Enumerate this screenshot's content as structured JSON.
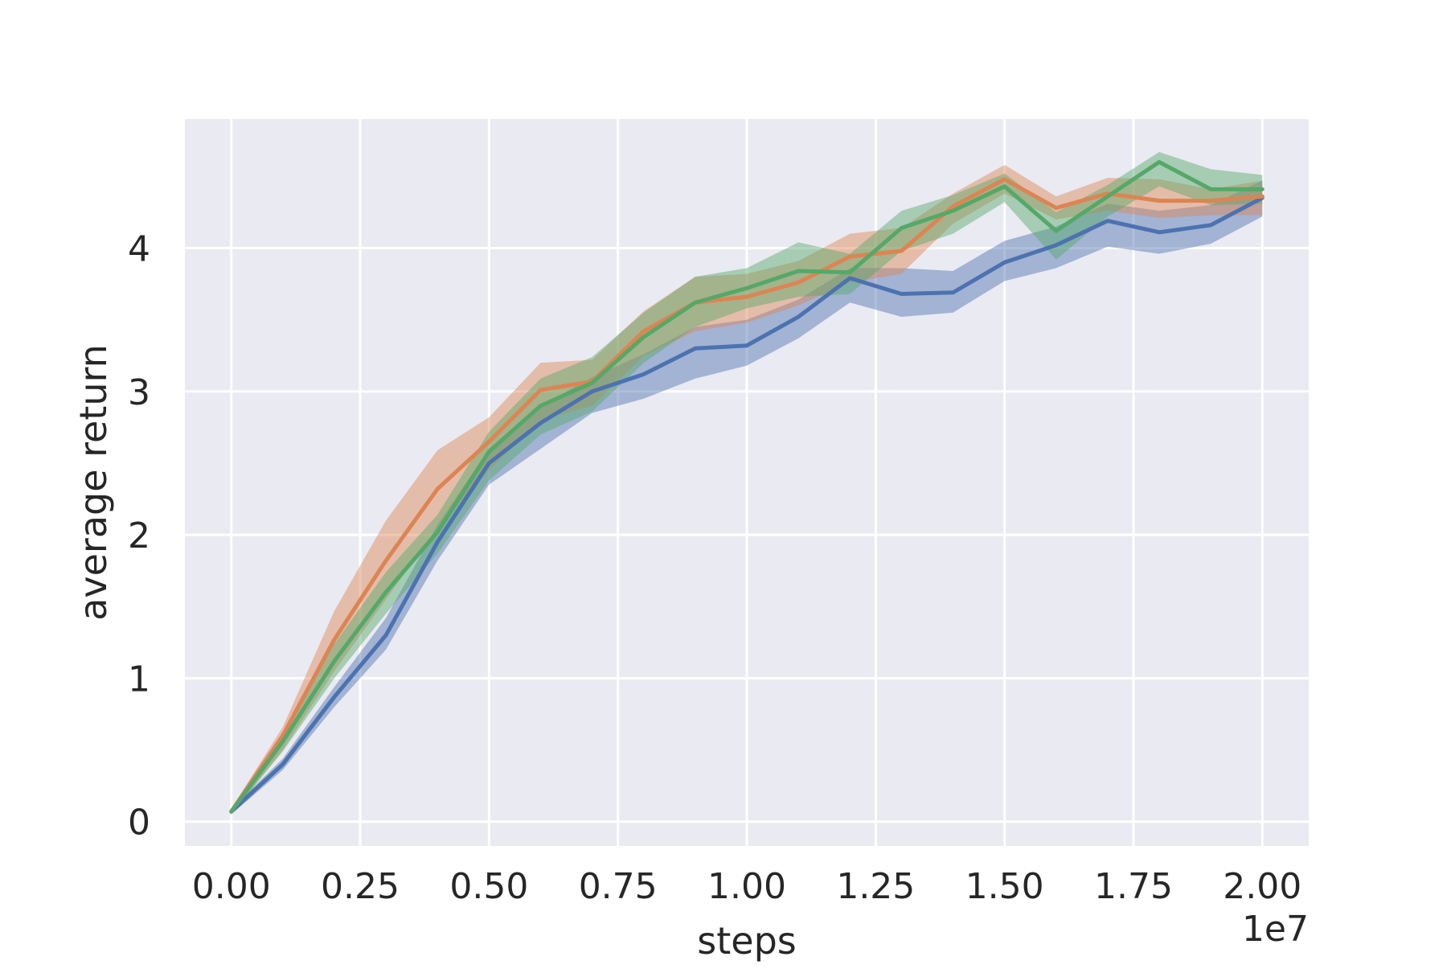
{
  "chart_data": {
    "type": "line",
    "title": "",
    "xlabel": "steps",
    "ylabel": "average return",
    "x_offset_label": "1e7",
    "xlim": [
      -0.09,
      2.09
    ],
    "ylim": [
      -0.17,
      4.9
    ],
    "x_ticks": [
      0.0,
      0.25,
      0.5,
      0.75,
      1.0,
      1.25,
      1.5,
      1.75,
      2.0
    ],
    "x_tick_labels": [
      "0.00",
      "0.25",
      "0.50",
      "0.75",
      "1.00",
      "1.25",
      "1.50",
      "1.75",
      "2.00"
    ],
    "y_ticks": [
      0,
      1,
      2,
      3,
      4
    ],
    "y_tick_labels": [
      "0",
      "1",
      "2",
      "3",
      "4"
    ],
    "grid": true,
    "legend": "none",
    "background": "#eaeaf2",
    "x": [
      0.0,
      0.1,
      0.2,
      0.3,
      0.4,
      0.5,
      0.6,
      0.7,
      0.8,
      0.9,
      1.0,
      1.1,
      1.2,
      1.3,
      1.4,
      1.5,
      1.6,
      1.7,
      1.8,
      1.9,
      2.0
    ],
    "series": [
      {
        "color": "#4c72b0",
        "values": [
          0.07,
          0.4,
          0.87,
          1.3,
          1.95,
          2.5,
          2.78,
          3.0,
          3.12,
          3.3,
          3.32,
          3.52,
          3.79,
          3.68,
          3.69,
          3.9,
          4.02,
          4.19,
          4.11,
          4.16,
          4.35
        ],
        "lower": [
          0.05,
          0.36,
          0.8,
          1.2,
          1.82,
          2.35,
          2.6,
          2.85,
          2.95,
          3.09,
          3.18,
          3.37,
          3.62,
          3.52,
          3.55,
          3.77,
          3.86,
          4.01,
          3.96,
          4.03,
          4.22
        ],
        "upper": [
          0.09,
          0.44,
          0.94,
          1.42,
          2.07,
          2.6,
          2.9,
          3.1,
          3.26,
          3.45,
          3.5,
          3.64,
          3.86,
          3.86,
          3.84,
          4.05,
          4.15,
          4.31,
          4.26,
          4.3,
          4.47
        ]
      },
      {
        "color": "#dd8452",
        "values": [
          0.07,
          0.6,
          1.27,
          1.82,
          2.32,
          2.65,
          3.01,
          3.07,
          3.42,
          3.62,
          3.66,
          3.76,
          3.94,
          3.98,
          4.29,
          4.48,
          4.28,
          4.38,
          4.33,
          4.33,
          4.36
        ],
        "lower": [
          0.05,
          0.5,
          1.05,
          1.55,
          2.05,
          2.45,
          2.8,
          2.9,
          3.25,
          3.42,
          3.48,
          3.6,
          3.76,
          3.82,
          4.17,
          4.38,
          4.2,
          4.26,
          4.21,
          4.23,
          4.23
        ],
        "upper": [
          0.09,
          0.66,
          1.47,
          2.1,
          2.59,
          2.82,
          3.2,
          3.22,
          3.56,
          3.8,
          3.82,
          3.91,
          4.1,
          4.14,
          4.38,
          4.58,
          4.36,
          4.49,
          4.48,
          4.41,
          4.47
        ]
      },
      {
        "color": "#55a868",
        "values": [
          0.07,
          0.56,
          1.12,
          1.6,
          2.02,
          2.58,
          2.9,
          3.06,
          3.38,
          3.62,
          3.72,
          3.84,
          3.83,
          4.14,
          4.26,
          4.43,
          4.12,
          4.36,
          4.6,
          4.41,
          4.41
        ],
        "lower": [
          0.05,
          0.49,
          1.0,
          1.45,
          1.87,
          2.38,
          2.7,
          2.86,
          3.2,
          3.45,
          3.58,
          3.66,
          3.68,
          3.98,
          4.1,
          4.32,
          3.92,
          4.22,
          4.43,
          4.3,
          4.31
        ],
        "upper": [
          0.09,
          0.62,
          1.24,
          1.74,
          2.14,
          2.72,
          3.09,
          3.24,
          3.55,
          3.8,
          3.86,
          4.04,
          3.96,
          4.26,
          4.37,
          4.52,
          4.25,
          4.44,
          4.67,
          4.55,
          4.51
        ]
      }
    ]
  }
}
